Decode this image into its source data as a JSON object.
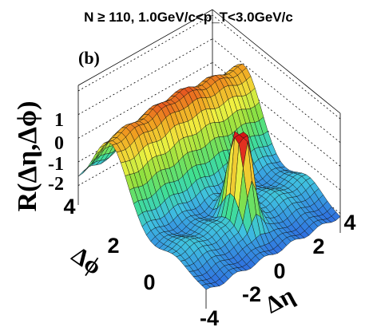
{
  "chart_data": {
    "type": "surface",
    "title": "N ≥ 110, 1.0GeV/c<p_T<3.0GeV/c",
    "panel_label": "(b)",
    "zlabel": "R(Δη,Δϕ)",
    "xlabel": "Δη",
    "ylabel": "Δϕ",
    "xlim": [
      -4.8,
      4.8
    ],
    "ylim": [
      -1.6,
      4.7
    ],
    "zlim": [
      -2.3,
      2.0
    ],
    "x_ticks": [
      "-4",
      "-2",
      "0",
      "2",
      "4"
    ],
    "y_ticks": [
      "0",
      "2",
      "4"
    ],
    "z_ticks": [
      "1",
      "0",
      "-1",
      "-2"
    ],
    "features": {
      "near_side_peak": {
        "delta_eta": 0,
        "delta_phi": 0,
        "height": 1.6,
        "note": "truncated at top"
      },
      "away_side_ridge": {
        "delta_phi": 3.14,
        "height": 1.2,
        "note": "extends along full Δη range"
      },
      "minimum_level": -1.7
    },
    "colormap": [
      "#1f1fbf",
      "#2f6fe0",
      "#3fc0e0",
      "#40e090",
      "#8fe040",
      "#f0f040",
      "#f0a020",
      "#e02020",
      "#c00000"
    ]
  }
}
